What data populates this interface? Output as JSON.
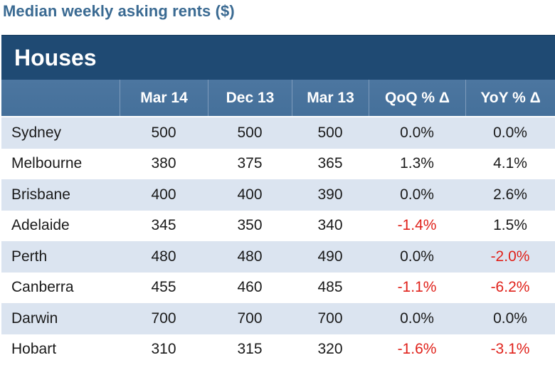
{
  "title": "Median weekly asking rents ($)",
  "section": "Houses",
  "columns": [
    "",
    "Mar 14",
    "Dec 13",
    "Mar 13",
    "QoQ % Δ",
    "YoY % Δ"
  ],
  "rows": [
    {
      "city": "Sydney",
      "mar14": "500",
      "dec13": "500",
      "mar13": "500",
      "qoq": "0.0%",
      "yoy": "0.0%"
    },
    {
      "city": "Melbourne",
      "mar14": "380",
      "dec13": "375",
      "mar13": "365",
      "qoq": "1.3%",
      "yoy": "4.1%"
    },
    {
      "city": "Brisbane",
      "mar14": "400",
      "dec13": "400",
      "mar13": "390",
      "qoq": "0.0%",
      "yoy": "2.6%"
    },
    {
      "city": "Adelaide",
      "mar14": "345",
      "dec13": "350",
      "mar13": "340",
      "qoq": "-1.4%",
      "yoy": "1.5%"
    },
    {
      "city": "Perth",
      "mar14": "480",
      "dec13": "480",
      "mar13": "490",
      "qoq": "0.0%",
      "yoy": "-2.0%"
    },
    {
      "city": "Canberra",
      "mar14": "455",
      "dec13": "460",
      "mar13": "485",
      "qoq": "-1.1%",
      "yoy": "-6.2%"
    },
    {
      "city": "Darwin",
      "mar14": "700",
      "dec13": "700",
      "mar13": "700",
      "qoq": "0.0%",
      "yoy": "0.0%"
    },
    {
      "city": "Hobart",
      "mar14": "310",
      "dec13": "315",
      "mar13": "320",
      "qoq": "-1.6%",
      "yoy": "-3.1%"
    }
  ],
  "colors": {
    "title": "#3a6a92",
    "caption_bg": "#1f4a73",
    "header_bg": "#4c76a0",
    "alt_row_bg": "#dbe4f0",
    "negative": "#e0221b"
  }
}
